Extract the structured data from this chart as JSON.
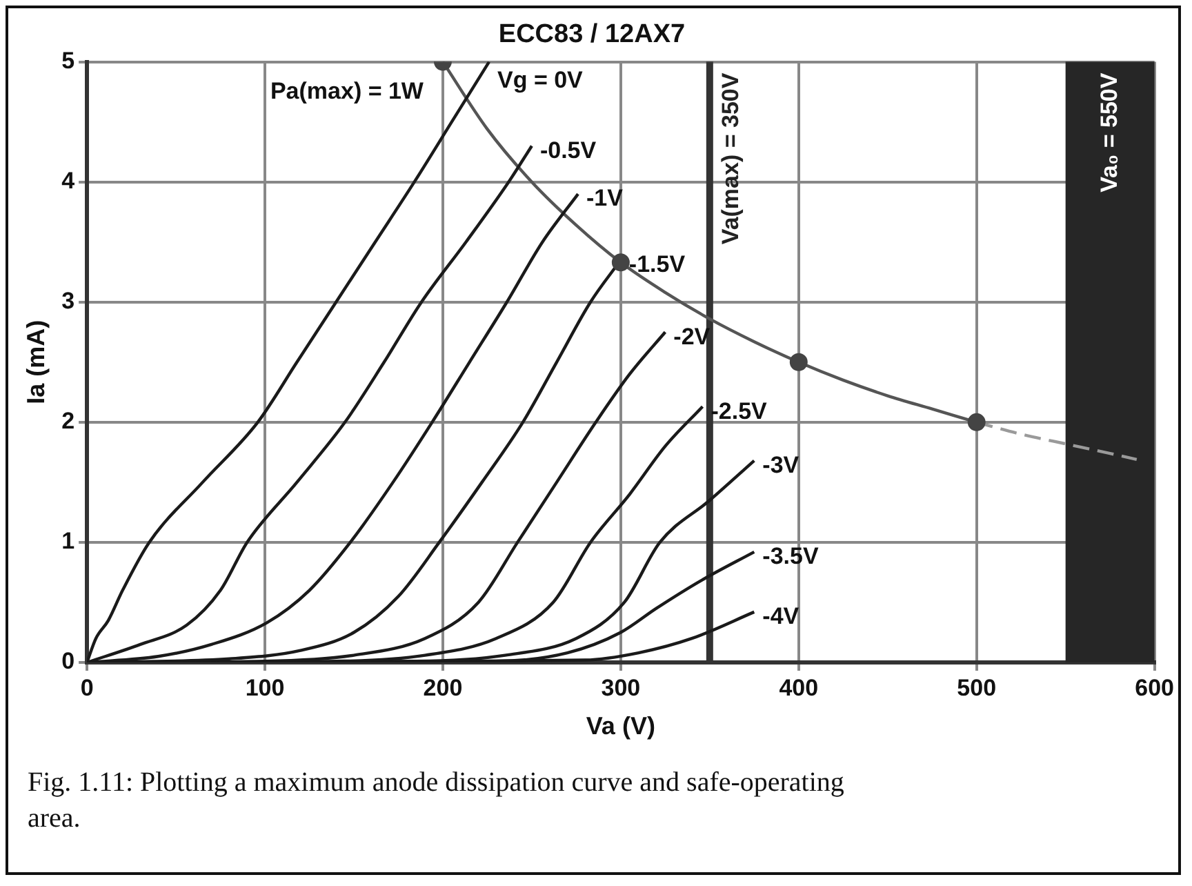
{
  "chart_data": {
    "type": "line",
    "title": "ECC83 / 12AX7",
    "xlabel": "Va (V)",
    "ylabel": "Ia (mA)",
    "xlim": [
      0,
      600
    ],
    "xticks": [
      0,
      100,
      200,
      300,
      400,
      500,
      600
    ],
    "ylim": [
      0,
      5
    ],
    "yticks": [
      0,
      1,
      2,
      3,
      4,
      5
    ],
    "grid": true,
    "legend": false,
    "marker": "none",
    "line_style": "solid",
    "series": [
      {
        "name": "Vg = 0V",
        "color": "#1a1a1a",
        "x": [
          0,
          5,
          12,
          20,
          35,
          65,
          96,
          118,
          140,
          162,
          184,
          205,
          226
        ],
        "values": [
          0,
          0.2,
          0.35,
          0.6,
          1.0,
          1.5,
          2.0,
          2.5,
          3.0,
          3.5,
          4.0,
          4.5,
          5.0
        ]
      },
      {
        "name": "-0.5V",
        "color": "#1a1a1a",
        "x": [
          0,
          30,
          56,
          75,
          90,
          118,
          145,
          167,
          188,
          213,
          237,
          250
        ],
        "values": [
          0,
          0.15,
          0.31,
          0.6,
          1.0,
          1.5,
          2.0,
          2.5,
          3.0,
          3.5,
          4.0,
          4.3
        ]
      },
      {
        "name": "-1V",
        "color": "#1a1a1a",
        "x": [
          0,
          40,
          70,
          101,
          125,
          148,
          172,
          194,
          215,
          236,
          256,
          276
        ],
        "values": [
          0,
          0.05,
          0.15,
          0.33,
          0.6,
          1.0,
          1.5,
          2.0,
          2.5,
          3.0,
          3.5,
          3.9
        ]
      },
      {
        "name": "-1.5V",
        "color": "#1a1a1a",
        "x": [
          0,
          80,
          120,
          150,
          175,
          198,
          222,
          245,
          264,
          283,
          300
        ],
        "values": [
          0,
          0.03,
          0.1,
          0.25,
          0.55,
          1.0,
          1.5,
          2.0,
          2.5,
          3.0,
          3.35
        ]
      },
      {
        "name": "-2V",
        "color": "#1a1a1a",
        "x": [
          0,
          100,
          150,
          190,
          220,
          242,
          264,
          286,
          305,
          325
        ],
        "values": [
          0,
          0.01,
          0.06,
          0.2,
          0.5,
          1.0,
          1.5,
          2.0,
          2.4,
          2.75
        ]
      },
      {
        "name": "-2.5V",
        "color": "#1a1a1a",
        "x": [
          0,
          140,
          190,
          230,
          262,
          283,
          305,
          325,
          346
        ],
        "values": [
          0,
          0.01,
          0.06,
          0.2,
          0.5,
          1.0,
          1.4,
          1.8,
          2.13
        ]
      },
      {
        "name": "-3V",
        "color": "#1a1a1a",
        "x": [
          0,
          185,
          235,
          275,
          302,
          322,
          350,
          375
        ],
        "values": [
          0,
          0.01,
          0.06,
          0.2,
          0.5,
          1.0,
          1.35,
          1.68
        ]
      },
      {
        "name": "-3.5V",
        "color": "#1a1a1a",
        "x": [
          0,
          230,
          270,
          300,
          320,
          345,
          375
        ],
        "values": [
          0,
          0.01,
          0.08,
          0.25,
          0.45,
          0.68,
          0.92
        ]
      },
      {
        "name": "-4V",
        "color": "#1a1a1a",
        "x": [
          0,
          280,
          310,
          340,
          375
        ],
        "values": [
          0,
          0.02,
          0.08,
          0.2,
          0.42
        ]
      },
      {
        "color": "#555555",
        "x": [
          200,
          225,
          250,
          275,
          300,
          325,
          350,
          375,
          400,
          425,
          450,
          475,
          500
        ],
        "values": [
          5.0,
          4.44,
          4.0,
          3.64,
          3.33,
          3.08,
          2.86,
          2.67,
          2.5,
          2.35,
          2.22,
          2.11,
          2.0
        ]
      },
      {
        "color": "#9a9a9a",
        "line_style": "dashed",
        "x": [
          500,
          525,
          550,
          575,
          590
        ],
        "values": [
          2.0,
          1.9,
          1.82,
          1.74,
          1.69
        ]
      },
      {
        "type": "scatter",
        "marker": "circle",
        "color": "#444444",
        "x": [
          200,
          300,
          400,
          500
        ],
        "values": [
          5.0,
          3.33,
          2.5,
          2.0
        ]
      }
    ],
    "ref_lines": [
      {
        "axis": "x",
        "value": 350,
        "label": "Va(max) = 350V",
        "color": "#333333"
      }
    ],
    "bands": [
      {
        "axis": "x",
        "from": 550,
        "to": 600,
        "label": "Va₀ = 550V",
        "color": "#262626"
      }
    ],
    "annotations": [
      {
        "text": "Pa(max) = 1W",
        "x": 200,
        "y": 5
      },
      "Fig. 1.11: Plotting a maximum anode dissipation curve and safe-operating area."
    ]
  }
}
